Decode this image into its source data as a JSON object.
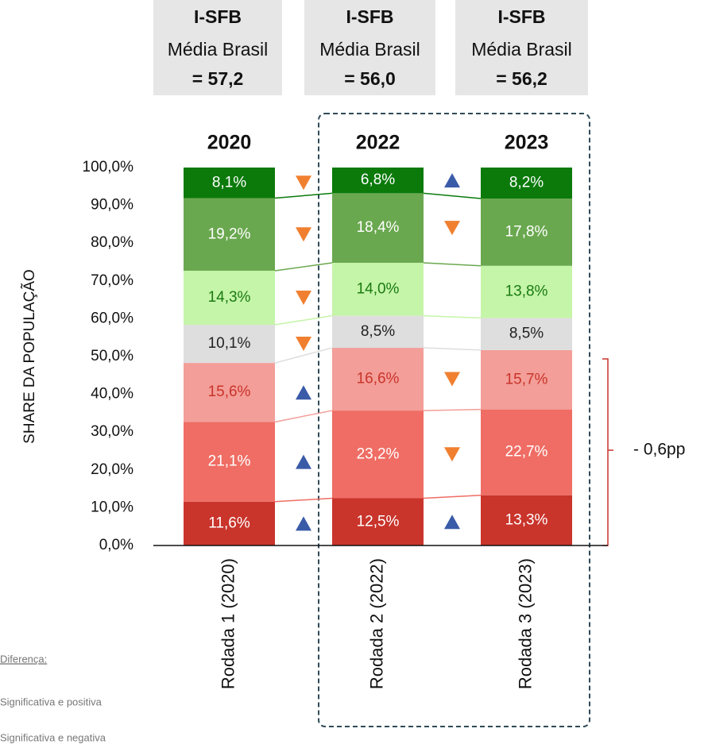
{
  "chart_data": {
    "type": "stacked_bar",
    "headers": [
      {
        "title": "I-SFB",
        "subtitle": "Média Brasil",
        "value": "= 57,2"
      },
      {
        "title": "I-SFB",
        "subtitle": "Média Brasil",
        "value": "= 56,0"
      },
      {
        "title": "I-SFB",
        "subtitle": "Média Brasil",
        "value": "= 56,2"
      }
    ],
    "years": [
      "2020",
      "2022",
      "2023"
    ],
    "categories": [
      "Rodada 1  (2020)",
      "Rodada 2 (2022)",
      "Rodada 3 (2023)"
    ],
    "y_label": "SHARE DA POPULAÇÃO",
    "ylim": [
      0,
      100
    ],
    "yticks": [
      {
        "value": 0,
        "label": "0,0%"
      },
      {
        "value": 10,
        "label": "10,0%"
      },
      {
        "value": 20,
        "label": "20,0%"
      },
      {
        "value": 30,
        "label": "30,0%"
      },
      {
        "value": 40,
        "label": "40,0%"
      },
      {
        "value": 50,
        "label": "50,0%"
      },
      {
        "value": 60,
        "label": "60,0%"
      },
      {
        "value": 70,
        "label": "70,0%"
      },
      {
        "value": 80,
        "label": "80,0%"
      },
      {
        "value": 90,
        "label": "90,0%"
      },
      {
        "value": 100,
        "label": "100,0%"
      }
    ],
    "series": [
      {
        "color": "#c9342b",
        "label_color": "#ffffff",
        "values": [
          11.6,
          12.5,
          13.3
        ],
        "value_labels": [
          "11,6%",
          "12,5%",
          "13,3%"
        ]
      },
      {
        "color": "#ef6d64",
        "label_color": "#ffffff",
        "values": [
          21.1,
          23.2,
          22.7
        ],
        "value_labels": [
          "21,1%",
          "23,2%",
          "22,7%"
        ]
      },
      {
        "color": "#f39e98",
        "label_color": "#c9342b",
        "values": [
          15.6,
          16.6,
          15.7
        ],
        "value_labels": [
          "15,6%",
          "16,6%",
          "15,7%"
        ]
      },
      {
        "color": "#dedede",
        "label_color": "#222222",
        "values": [
          10.1,
          8.5,
          8.5
        ],
        "value_labels": [
          "10,1%",
          "8,5%",
          "8,5%"
        ]
      },
      {
        "color": "#c5f5a8",
        "label_color": "#1a7a12",
        "values": [
          14.3,
          14.0,
          13.8
        ],
        "value_labels": [
          "14,3%",
          "14,0%",
          "13,8%"
        ]
      },
      {
        "color": "#6aa84f",
        "label_color": "#ffffff",
        "values": [
          19.2,
          18.4,
          17.8
        ],
        "value_labels": [
          "19,2%",
          "18,4%",
          "17,8%"
        ]
      },
      {
        "color": "#0b7a0b",
        "label_color": "#ffffff",
        "values": [
          8.1,
          6.8,
          8.2
        ],
        "value_labels": [
          "8,1%",
          "6,8%",
          "8,2%"
        ]
      }
    ],
    "significance": [
      [
        "up",
        "up",
        "up",
        "down",
        "down",
        "down",
        "down"
      ],
      [
        "up",
        "down",
        "down",
        null,
        null,
        "down",
        "up"
      ]
    ],
    "up_color": "#3a5ba8",
    "down_color": "#f08030",
    "annotation": "- 0,6pp",
    "legend": {
      "title": "Diferença:",
      "items": [
        "Significativa e positiva",
        "Significativa e negativa"
      ]
    }
  }
}
